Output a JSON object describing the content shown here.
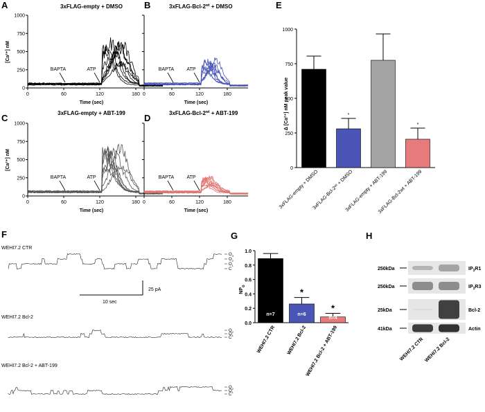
{
  "panels": {
    "A": {
      "letter": "A",
      "title": "3xFLAG-empty + DMSO",
      "ylabel": "[Ca²⁺] nM",
      "xlabel": "Time (sec)",
      "bapta": "BAPTA",
      "atp": "ATP",
      "color": "#000000",
      "amp": 0.62,
      "seed": 1
    },
    "B": {
      "letter": "B",
      "title": "3xFLAG-Bcl-2",
      "title_sup": "wt",
      "title_tail": " + DMSO",
      "xlabel": "Time (sec)",
      "bapta": "BAPTA",
      "atp": "ATP",
      "color": "#4a55b5",
      "amp": 0.36,
      "seed": 7
    },
    "C": {
      "letter": "C",
      "title": "3xFLAG-empty + ABT-199",
      "ylabel": "[Ca²⁺] nM",
      "xlabel": "Time (sec)",
      "bapta": "BAPTA",
      "atp": "ATP",
      "color": "#555555",
      "amp": 0.64,
      "seed": 3
    },
    "D": {
      "letter": "D",
      "title": "3xFLAG-Bcl-2",
      "title_sup": "wt",
      "title_tail": " + ABT-199",
      "xlabel": "Time (sec)",
      "bapta": "BAPTA",
      "atp": "ATP",
      "color": "#e27370",
      "amp": 0.22,
      "seed": 5
    },
    "E": {
      "letter": "E"
    },
    "F": {
      "letter": "F"
    },
    "G": {
      "letter": "G"
    },
    "H": {
      "letter": "H"
    }
  },
  "trace_axes": {
    "yticks": [
      "0",
      "250",
      "500",
      "750",
      "1000"
    ],
    "xticks": [
      "0",
      "60",
      "120",
      "180"
    ],
    "ylim": [
      0,
      1000
    ],
    "xlim": [
      0,
      225
    ]
  },
  "chart_data": [
    {
      "type": "bar",
      "panel": "E",
      "ylabel": "Δ [Ca²⁺] nM peak value",
      "ylim": [
        0,
        1000
      ],
      "yticks": [
        "0",
        "250",
        "500",
        "750",
        "1000"
      ],
      "categories": [
        "3xFLAG-empty + DMSO",
        "3xFLAG-Bcl-2ʷᵗ + DMSO",
        "3xFLAG-empty + ABT-199",
        "3xFLAG-Bcl-2wt + ABT-199"
      ],
      "values": [
        710,
        280,
        775,
        205
      ],
      "errors": [
        95,
        75,
        190,
        80
      ],
      "colors": [
        "#000000",
        "#4a55b5",
        "#a4a4a4",
        "#e77b7b"
      ],
      "marks": [
        "",
        "*",
        "",
        "*"
      ]
    },
    {
      "type": "bar",
      "panel": "G",
      "ylabel": "NPo",
      "ylabel_main": "NP",
      "ylabel_sub": "o",
      "ylim": [
        0,
        1.0
      ],
      "yticks": [
        "0.0",
        "0.2",
        "0.4",
        "0.6",
        "0.8",
        "1.0"
      ],
      "categories": [
        "WEHI7.2 CTR",
        "WEHI7.2 Bcl-2",
        "WEHI7.2 Bcl-2 + ABT-199"
      ],
      "values": [
        0.89,
        0.26,
        0.08
      ],
      "errors": [
        0.07,
        0.09,
        0.05
      ],
      "colors": [
        "#000000",
        "#4a55b5",
        "#e77b7b"
      ],
      "n_labels": [
        "n=7",
        "n=6",
        "n=4"
      ],
      "marks": [
        "",
        "*",
        "*"
      ]
    }
  ],
  "panelF": {
    "traces": [
      {
        "label": "WEHI7.2 CTR",
        "style": "ctr"
      },
      {
        "label": "WEHI7.2 Bcl-2",
        "style": "bcl"
      },
      {
        "label": "WEHI7.2 Bcl-2 + ABT-199",
        "style": "abt"
      }
    ],
    "levels": [
      "O",
      "O",
      "O",
      "C"
    ],
    "level_subs": [
      "3",
      "2",
      "1",
      ""
    ],
    "scale_time": "10 sec",
    "scale_current": "25 pA"
  },
  "panelH": {
    "rows": [
      {
        "kda": "250kDa",
        "prefix": "IP",
        "sub": "3",
        "suffix": "R1"
      },
      {
        "kda": "250kDa",
        "prefix": "IP",
        "sub": "3",
        "suffix": "R3"
      },
      {
        "kda": "25kDa",
        "prefix": "Bcl-2",
        "sub": "",
        "suffix": ""
      },
      {
        "kda": "41kDa",
        "prefix": "Actin",
        "sub": "",
        "suffix": ""
      }
    ],
    "lanes": [
      "WEHI7.2 CTR",
      "WEHI7.2 Bcl-2"
    ]
  }
}
